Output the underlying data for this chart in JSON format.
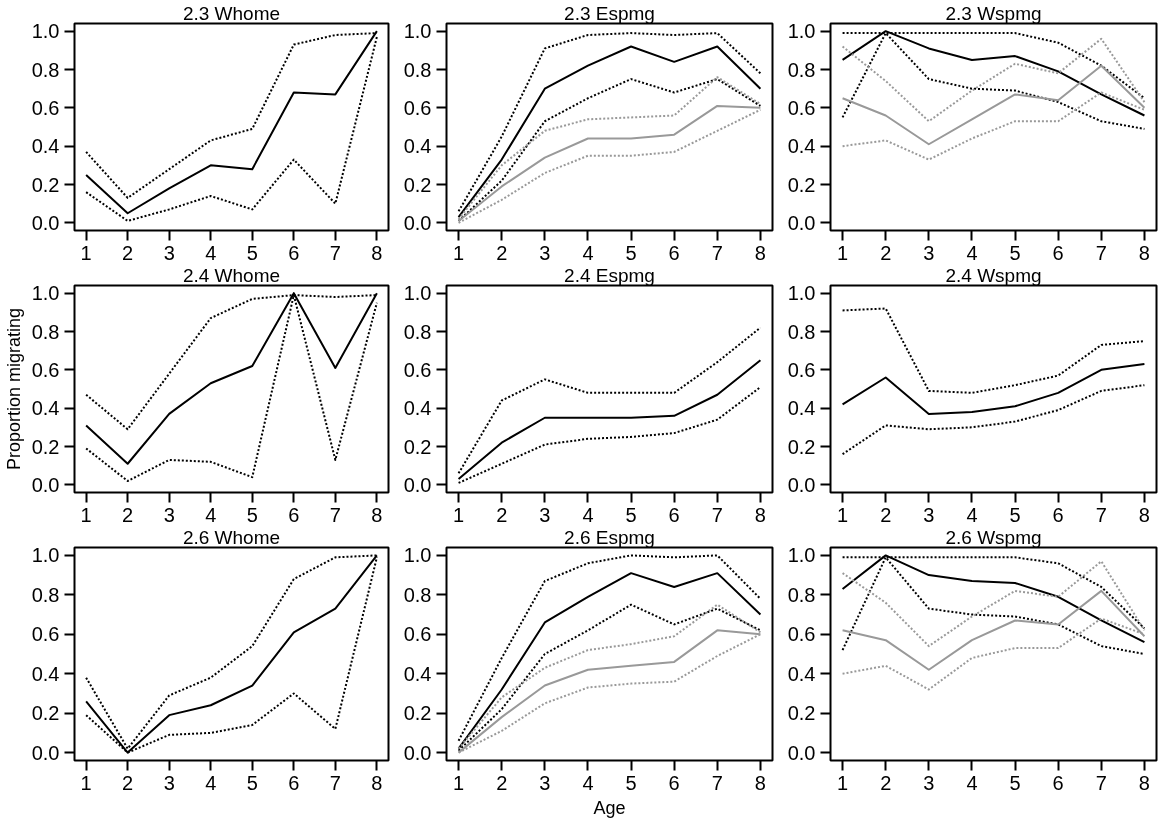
{
  "chart_data": [
    {
      "type": "line",
      "title": "2.3 Whome",
      "xlim": [
        0.72,
        8.28
      ],
      "ylim": [
        -0.04,
        1.04
      ],
      "xticks": [
        1,
        2,
        3,
        4,
        5,
        6,
        7,
        8
      ],
      "yticks": [
        {
          "value": 0,
          "label": "0.0"
        },
        {
          "value": 0.2,
          "label": "0.2"
        },
        {
          "value": 0.4,
          "label": "0.4"
        },
        {
          "value": 0.6,
          "label": "0.6"
        },
        {
          "value": 0.8,
          "label": "0.8"
        },
        {
          "value": 1,
          "label": "1.0"
        }
      ],
      "grid": false,
      "x": [
        1,
        2,
        3,
        4,
        5,
        6,
        7,
        8
      ],
      "series": [
        {
          "color": "#000000",
          "line_style": "solid",
          "values": [
            0.25,
            0.05,
            0.18,
            0.3,
            0.28,
            0.68,
            0.67,
            1.0
          ]
        },
        {
          "color": "#000000",
          "line_style": "dotted",
          "values": [
            0.37,
            0.13,
            0.28,
            0.43,
            0.49,
            0.93,
            0.98,
            0.99
          ]
        },
        {
          "color": "#000000",
          "line_style": "dotted",
          "values": [
            0.16,
            0.01,
            0.07,
            0.14,
            0.07,
            0.33,
            0.1,
            0.97
          ]
        }
      ]
    },
    {
      "type": "line",
      "title": "2.3 Espmg",
      "xlim": [
        0.72,
        8.28
      ],
      "ylim": [
        -0.04,
        1.04
      ],
      "xticks": [
        1,
        2,
        3,
        4,
        5,
        6,
        7,
        8
      ],
      "yticks": [
        {
          "value": 0,
          "label": "0.0"
        },
        {
          "value": 0.2,
          "label": "0.2"
        },
        {
          "value": 0.4,
          "label": "0.4"
        },
        {
          "value": 0.6,
          "label": "0.6"
        },
        {
          "value": 0.8,
          "label": "0.8"
        },
        {
          "value": 1,
          "label": "1.0"
        }
      ],
      "grid": false,
      "x": [
        1,
        2,
        3,
        4,
        5,
        6,
        7,
        8
      ],
      "series": [
        {
          "color": "#000000",
          "line_style": "solid",
          "values": [
            0.03,
            0.33,
            0.7,
            0.82,
            0.92,
            0.84,
            0.92,
            0.7
          ]
        },
        {
          "color": "#000000",
          "line_style": "dotted",
          "values": [
            0.06,
            0.45,
            0.91,
            0.98,
            0.99,
            0.98,
            0.99,
            0.78
          ]
        },
        {
          "color": "#000000",
          "line_style": "dotted",
          "values": [
            0.01,
            0.22,
            0.53,
            0.65,
            0.75,
            0.68,
            0.75,
            0.61
          ]
        },
        {
          "color": "#999999",
          "line_style": "solid",
          "values": [
            0.01,
            0.19,
            0.34,
            0.44,
            0.44,
            0.46,
            0.61,
            0.6
          ]
        },
        {
          "color": "#999999",
          "line_style": "dotted",
          "values": [
            0.02,
            0.3,
            0.48,
            0.54,
            0.55,
            0.56,
            0.76,
            0.62
          ]
        },
        {
          "color": "#999999",
          "line_style": "dotted",
          "values": [
            0.0,
            0.12,
            0.26,
            0.35,
            0.35,
            0.37,
            0.48,
            0.59
          ]
        }
      ]
    },
    {
      "type": "line",
      "title": "2.3 Wspmg",
      "xlim": [
        0.72,
        8.28
      ],
      "ylim": [
        -0.04,
        1.04
      ],
      "xticks": [
        1,
        2,
        3,
        4,
        5,
        6,
        7,
        8
      ],
      "yticks": [
        {
          "value": 0,
          "label": "0.0"
        },
        {
          "value": 0.2,
          "label": "0.2"
        },
        {
          "value": 0.4,
          "label": "0.4"
        },
        {
          "value": 0.6,
          "label": "0.6"
        },
        {
          "value": 0.8,
          "label": "0.8"
        },
        {
          "value": 1,
          "label": "1.0"
        }
      ],
      "grid": false,
      "x": [
        1,
        2,
        3,
        4,
        5,
        6,
        7,
        8
      ],
      "series": [
        {
          "color": "#000000",
          "line_style": "solid",
          "values": [
            0.85,
            1.0,
            0.91,
            0.85,
            0.87,
            0.79,
            0.67,
            0.56
          ]
        },
        {
          "color": "#000000",
          "line_style": "dotted",
          "values": [
            0.99,
            0.99,
            0.99,
            0.99,
            0.99,
            0.94,
            0.82,
            0.65
          ]
        },
        {
          "color": "#000000",
          "line_style": "dotted",
          "values": [
            0.55,
            0.99,
            0.75,
            0.7,
            0.69,
            0.63,
            0.53,
            0.49
          ]
        },
        {
          "color": "#999999",
          "line_style": "solid",
          "values": [
            0.65,
            0.56,
            0.41,
            0.54,
            0.67,
            0.64,
            0.82,
            0.6
          ]
        },
        {
          "color": "#999999",
          "line_style": "dotted",
          "values": [
            0.92,
            0.74,
            0.53,
            0.69,
            0.83,
            0.78,
            0.96,
            0.63
          ]
        },
        {
          "color": "#999999",
          "line_style": "dotted",
          "values": [
            0.4,
            0.43,
            0.33,
            0.44,
            0.53,
            0.53,
            0.68,
            0.59
          ]
        }
      ]
    },
    {
      "type": "line",
      "title": "2.4 Whome",
      "xlim": [
        0.72,
        8.28
      ],
      "ylim": [
        -0.04,
        1.04
      ],
      "xticks": [
        1,
        2,
        3,
        4,
        5,
        6,
        7,
        8
      ],
      "yticks": [
        {
          "value": 0,
          "label": "0.0"
        },
        {
          "value": 0.2,
          "label": "0.2"
        },
        {
          "value": 0.4,
          "label": "0.4"
        },
        {
          "value": 0.6,
          "label": "0.6"
        },
        {
          "value": 0.8,
          "label": "0.8"
        },
        {
          "value": 1,
          "label": "1.0"
        }
      ],
      "grid": false,
      "ylabel": "Proportion migrating",
      "x": [
        1,
        2,
        3,
        4,
        5,
        6,
        7,
        8
      ],
      "series": [
        {
          "color": "#000000",
          "line_style": "solid",
          "values": [
            0.31,
            0.11,
            0.37,
            0.53,
            0.62,
            1.0,
            0.61,
            1.0
          ]
        },
        {
          "color": "#000000",
          "line_style": "dotted",
          "values": [
            0.47,
            0.29,
            0.58,
            0.87,
            0.97,
            0.99,
            0.98,
            0.99
          ]
        },
        {
          "color": "#000000",
          "line_style": "dotted",
          "values": [
            0.19,
            0.02,
            0.13,
            0.12,
            0.04,
            0.99,
            0.13,
            0.95
          ]
        }
      ]
    },
    {
      "type": "line",
      "title": "2.4 Espmg",
      "xlim": [
        0.72,
        8.28
      ],
      "ylim": [
        -0.04,
        1.04
      ],
      "xticks": [
        1,
        2,
        3,
        4,
        5,
        6,
        7,
        8
      ],
      "yticks": [
        {
          "value": 0,
          "label": "0.0"
        },
        {
          "value": 0.2,
          "label": "0.2"
        },
        {
          "value": 0.4,
          "label": "0.4"
        },
        {
          "value": 0.6,
          "label": "0.6"
        },
        {
          "value": 0.8,
          "label": "0.8"
        },
        {
          "value": 1,
          "label": "1.0"
        }
      ],
      "grid": false,
      "x": [
        1,
        2,
        3,
        4,
        5,
        6,
        7,
        8
      ],
      "series": [
        {
          "color": "#000000",
          "line_style": "solid",
          "values": [
            0.03,
            0.22,
            0.35,
            0.35,
            0.35,
            0.36,
            0.47,
            0.65
          ]
        },
        {
          "color": "#000000",
          "line_style": "dotted",
          "values": [
            0.06,
            0.44,
            0.55,
            0.48,
            0.48,
            0.48,
            0.64,
            0.82
          ]
        },
        {
          "color": "#000000",
          "line_style": "dotted",
          "values": [
            0.01,
            0.11,
            0.21,
            0.24,
            0.25,
            0.27,
            0.34,
            0.51
          ]
        }
      ]
    },
    {
      "type": "line",
      "title": "2.4 Wspmg",
      "xlim": [
        0.72,
        8.28
      ],
      "ylim": [
        -0.04,
        1.04
      ],
      "xticks": [
        1,
        2,
        3,
        4,
        5,
        6,
        7,
        8
      ],
      "yticks": [
        {
          "value": 0,
          "label": "0.0"
        },
        {
          "value": 0.2,
          "label": "0.2"
        },
        {
          "value": 0.4,
          "label": "0.4"
        },
        {
          "value": 0.6,
          "label": "0.6"
        },
        {
          "value": 0.8,
          "label": "0.8"
        },
        {
          "value": 1,
          "label": "1.0"
        }
      ],
      "grid": false,
      "x": [
        1,
        2,
        3,
        4,
        5,
        6,
        7,
        8
      ],
      "series": [
        {
          "color": "#000000",
          "line_style": "solid",
          "values": [
            0.42,
            0.56,
            0.37,
            0.38,
            0.41,
            0.48,
            0.6,
            0.63
          ]
        },
        {
          "color": "#000000",
          "line_style": "dotted",
          "values": [
            0.91,
            0.92,
            0.49,
            0.48,
            0.52,
            0.57,
            0.73,
            0.75
          ]
        },
        {
          "color": "#000000",
          "line_style": "dotted",
          "values": [
            0.16,
            0.31,
            0.29,
            0.3,
            0.33,
            0.39,
            0.49,
            0.52
          ]
        }
      ]
    },
    {
      "type": "line",
      "title": "2.6 Whome",
      "xlim": [
        0.72,
        8.28
      ],
      "ylim": [
        -0.04,
        1.04
      ],
      "xticks": [
        1,
        2,
        3,
        4,
        5,
        6,
        7,
        8
      ],
      "yticks": [
        {
          "value": 0,
          "label": "0.0"
        },
        {
          "value": 0.2,
          "label": "0.2"
        },
        {
          "value": 0.4,
          "label": "0.4"
        },
        {
          "value": 0.6,
          "label": "0.6"
        },
        {
          "value": 0.8,
          "label": "0.8"
        },
        {
          "value": 1,
          "label": "1.0"
        }
      ],
      "grid": false,
      "x": [
        1,
        2,
        3,
        4,
        5,
        6,
        7,
        8
      ],
      "series": [
        {
          "color": "#000000",
          "line_style": "solid",
          "values": [
            0.26,
            0.0,
            0.19,
            0.24,
            0.34,
            0.61,
            0.73,
            1.0
          ]
        },
        {
          "color": "#000000",
          "line_style": "dotted",
          "values": [
            0.38,
            0.02,
            0.29,
            0.38,
            0.54,
            0.88,
            0.99,
            1.0
          ]
        },
        {
          "color": "#000000",
          "line_style": "dotted",
          "values": [
            0.19,
            0.0,
            0.09,
            0.1,
            0.14,
            0.3,
            0.12,
            0.99
          ]
        }
      ]
    },
    {
      "type": "line",
      "title": "2.6 Espmg",
      "xlim": [
        0.72,
        8.28
      ],
      "ylim": [
        -0.04,
        1.04
      ],
      "xticks": [
        1,
        2,
        3,
        4,
        5,
        6,
        7,
        8
      ],
      "yticks": [
        {
          "value": 0,
          "label": "0.0"
        },
        {
          "value": 0.2,
          "label": "0.2"
        },
        {
          "value": 0.4,
          "label": "0.4"
        },
        {
          "value": 0.6,
          "label": "0.6"
        },
        {
          "value": 0.8,
          "label": "0.8"
        },
        {
          "value": 1,
          "label": "1.0"
        }
      ],
      "grid": false,
      "xlabel": "Age",
      "x": [
        1,
        2,
        3,
        4,
        5,
        6,
        7,
        8
      ],
      "series": [
        {
          "color": "#000000",
          "line_style": "solid",
          "values": [
            0.02,
            0.32,
            0.66,
            0.79,
            0.91,
            0.84,
            0.91,
            0.7
          ]
        },
        {
          "color": "#000000",
          "line_style": "dotted",
          "values": [
            0.06,
            0.48,
            0.87,
            0.96,
            1.0,
            0.99,
            1.0,
            0.78
          ]
        },
        {
          "color": "#000000",
          "line_style": "dotted",
          "values": [
            0.01,
            0.22,
            0.5,
            0.62,
            0.75,
            0.65,
            0.73,
            0.62
          ]
        },
        {
          "color": "#999999",
          "line_style": "solid",
          "values": [
            0.0,
            0.18,
            0.34,
            0.42,
            0.44,
            0.46,
            0.62,
            0.6
          ]
        },
        {
          "color": "#999999",
          "line_style": "dotted",
          "values": [
            0.02,
            0.28,
            0.43,
            0.52,
            0.55,
            0.59,
            0.75,
            0.61
          ]
        },
        {
          "color": "#999999",
          "line_style": "dotted",
          "values": [
            0.0,
            0.11,
            0.25,
            0.33,
            0.35,
            0.36,
            0.49,
            0.6
          ]
        }
      ]
    },
    {
      "type": "line",
      "title": "2.6 Wspmg",
      "xlim": [
        0.72,
        8.28
      ],
      "ylim": [
        -0.04,
        1.04
      ],
      "xticks": [
        1,
        2,
        3,
        4,
        5,
        6,
        7,
        8
      ],
      "yticks": [
        {
          "value": 0,
          "label": "0.0"
        },
        {
          "value": 0.2,
          "label": "0.2"
        },
        {
          "value": 0.4,
          "label": "0.4"
        },
        {
          "value": 0.6,
          "label": "0.6"
        },
        {
          "value": 0.8,
          "label": "0.8"
        },
        {
          "value": 1,
          "label": "1.0"
        }
      ],
      "grid": false,
      "x": [
        1,
        2,
        3,
        4,
        5,
        6,
        7,
        8
      ],
      "series": [
        {
          "color": "#000000",
          "line_style": "solid",
          "values": [
            0.83,
            1.0,
            0.9,
            0.87,
            0.86,
            0.79,
            0.67,
            0.56
          ]
        },
        {
          "color": "#000000",
          "line_style": "dotted",
          "values": [
            0.99,
            0.99,
            0.99,
            0.99,
            0.99,
            0.96,
            0.84,
            0.63
          ]
        },
        {
          "color": "#000000",
          "line_style": "dotted",
          "values": [
            0.52,
            0.99,
            0.73,
            0.7,
            0.69,
            0.65,
            0.54,
            0.5
          ]
        },
        {
          "color": "#999999",
          "line_style": "solid",
          "values": [
            0.62,
            0.57,
            0.42,
            0.57,
            0.67,
            0.65,
            0.82,
            0.59
          ]
        },
        {
          "color": "#999999",
          "line_style": "dotted",
          "values": [
            0.91,
            0.76,
            0.54,
            0.69,
            0.82,
            0.79,
            0.97,
            0.62
          ]
        },
        {
          "color": "#999999",
          "line_style": "dotted",
          "values": [
            0.4,
            0.44,
            0.32,
            0.48,
            0.53,
            0.53,
            0.68,
            0.6
          ]
        }
      ]
    }
  ]
}
